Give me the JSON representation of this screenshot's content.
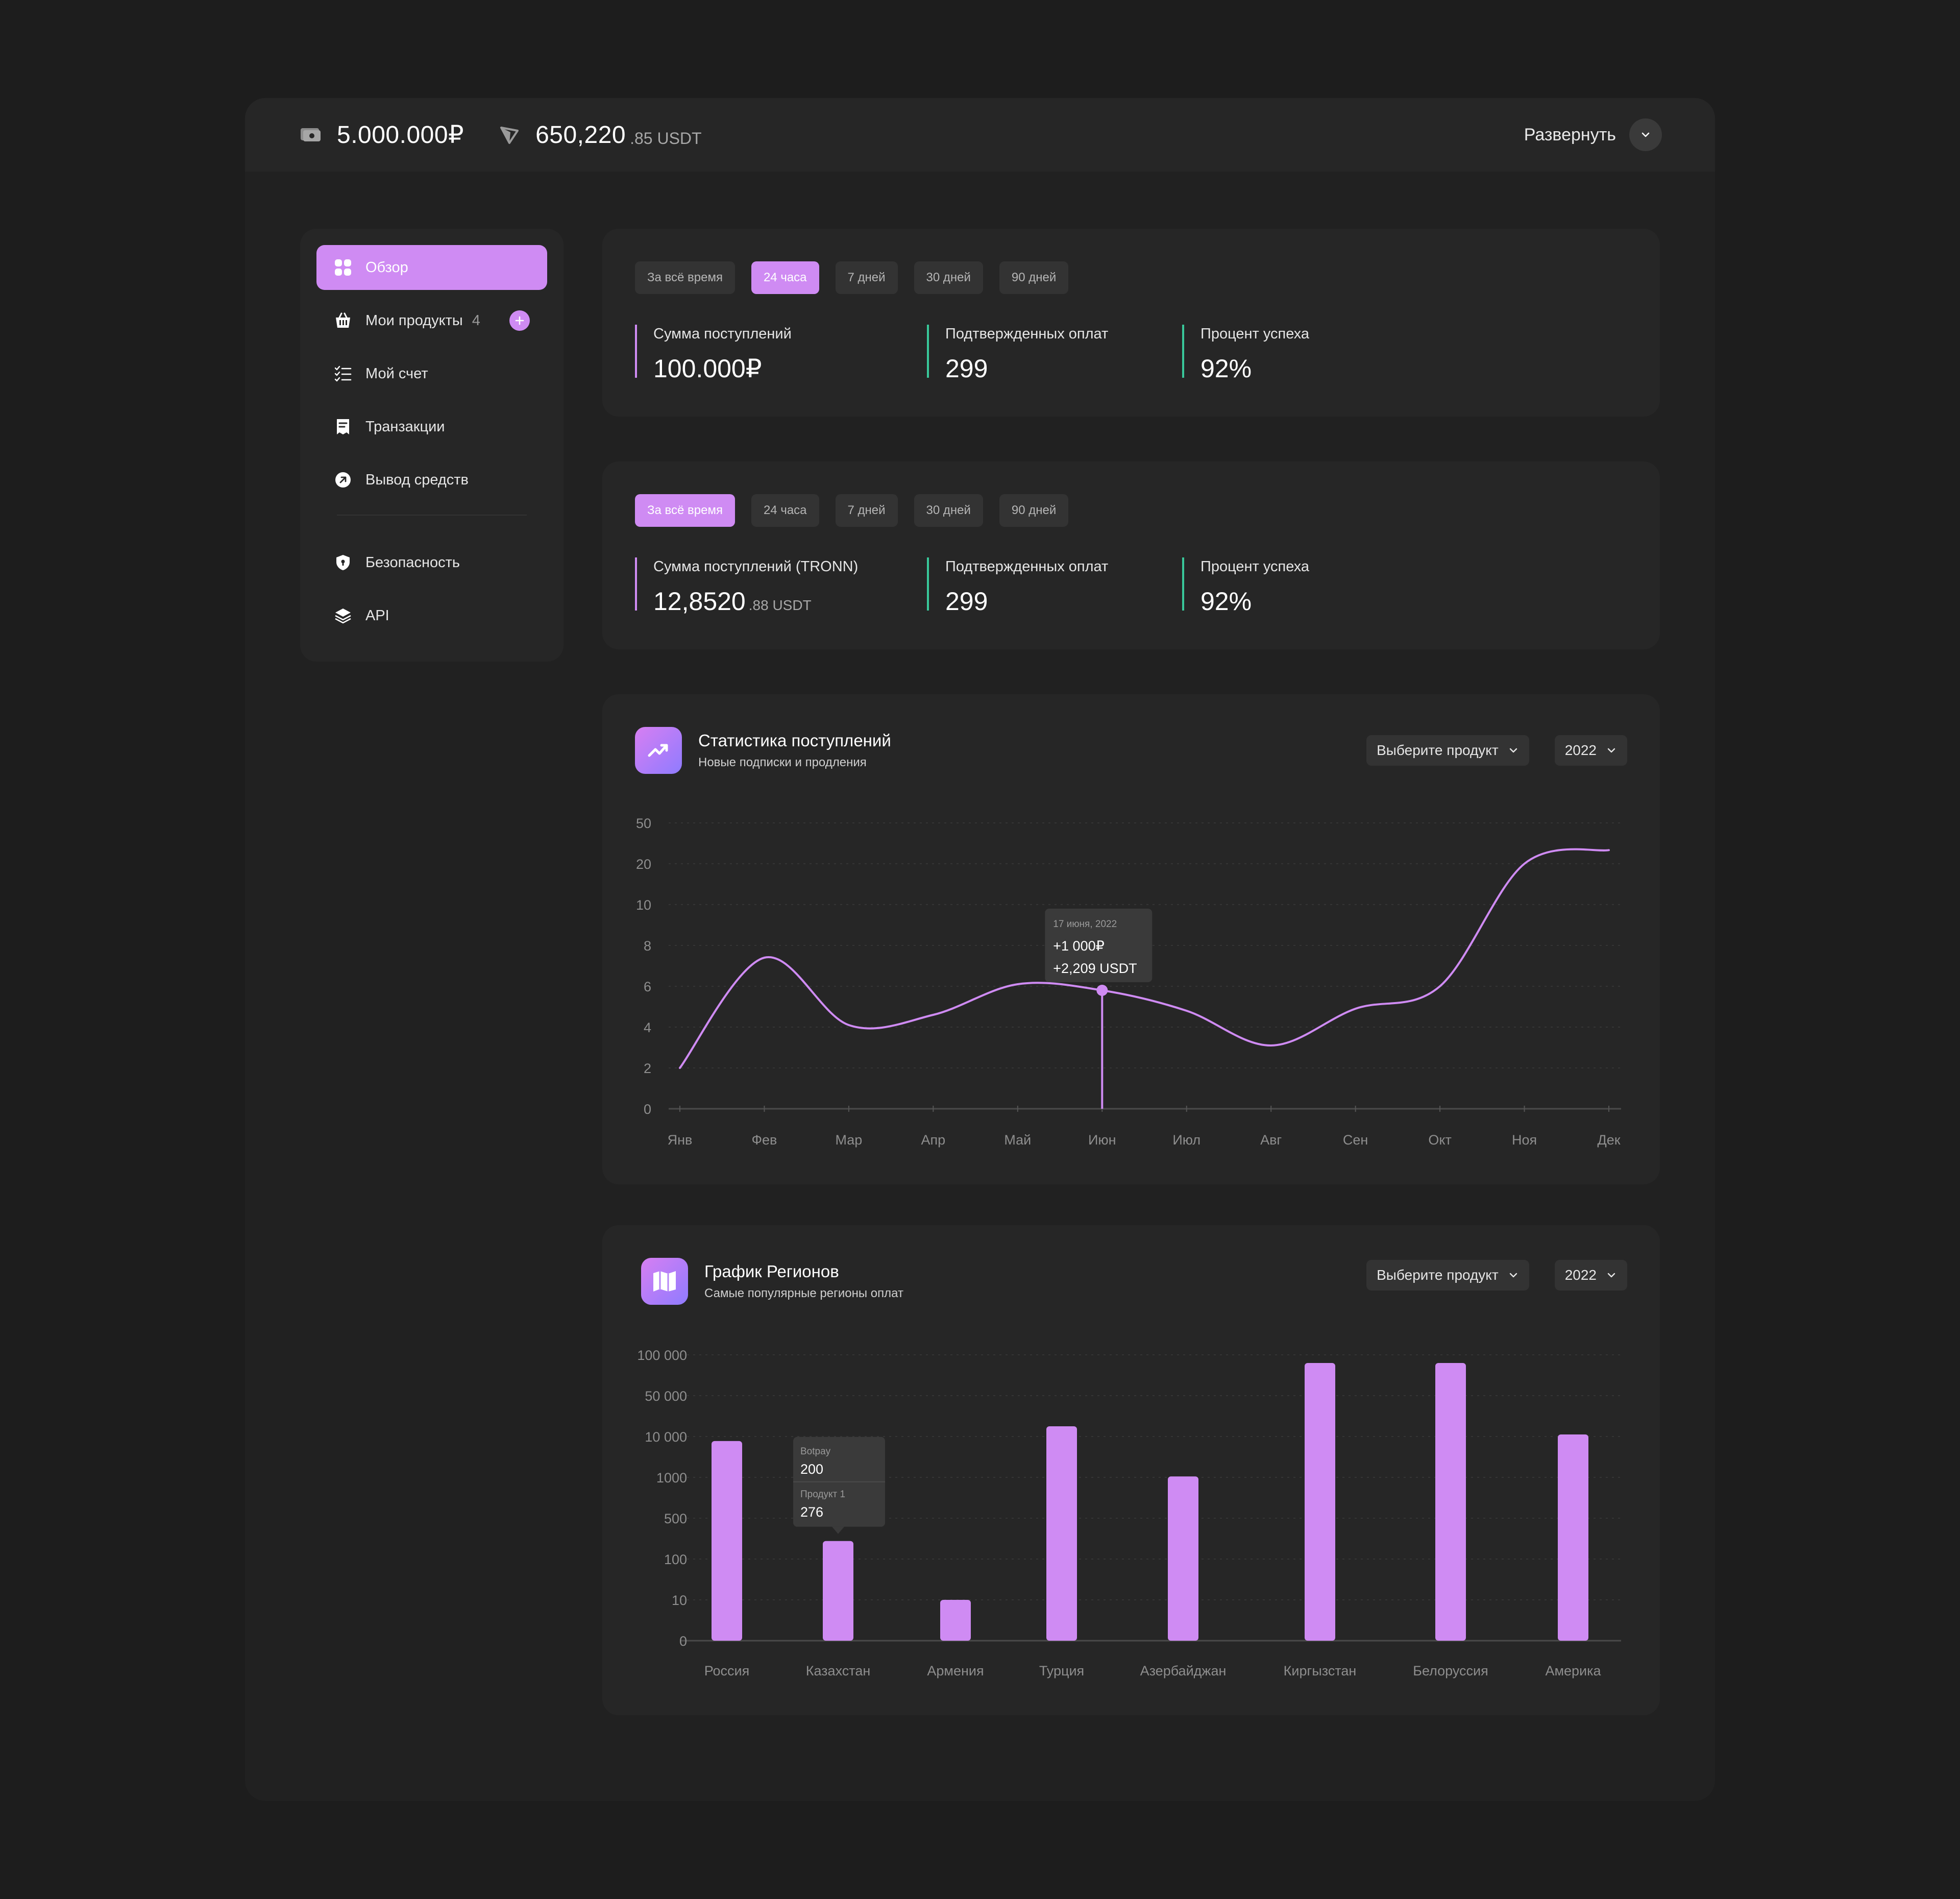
{
  "topbar": {
    "balance_rub": "5.000.000₽",
    "balance_usdt_main": "650,220",
    "balance_usdt_sub": ".85 USDT",
    "expand_label": "Развернуть",
    "icons": [
      "cash-icon",
      "tron-icon",
      "chevron-down-icon"
    ]
  },
  "sidebar": {
    "items": [
      {
        "label": "Обзор",
        "icon": "grid-icon",
        "active": true
      },
      {
        "label": "Мои продукты",
        "count": "4",
        "icon": "basket-icon"
      },
      {
        "label": "Мой счет",
        "icon": "checklist-icon"
      },
      {
        "label": "Транзакции",
        "icon": "receipt-icon"
      },
      {
        "label": "Вывод средств",
        "icon": "arrow-up-right-icon"
      },
      {
        "label": "Безопасность",
        "icon": "shield-icon"
      },
      {
        "label": "API",
        "icon": "layers-icon"
      }
    ]
  },
  "summary1": {
    "periods": [
      "За всё время",
      "24 часа",
      "7 дней",
      "30 дней",
      "90 дней"
    ],
    "active_period": 1,
    "stats": [
      {
        "label": "Сумма поступлений",
        "value": "100.000₽",
        "sub": ""
      },
      {
        "label": "Подтвержденных оплат",
        "value": "299",
        "sub": ""
      },
      {
        "label": "Процент успеха",
        "value": "92%",
        "sub": ""
      }
    ]
  },
  "summary2": {
    "periods": [
      "За всё время",
      "24 часа",
      "7 дней",
      "30 дней",
      "90 дней"
    ],
    "active_period": 0,
    "stats": [
      {
        "label": "Сумма поступлений (TRONN)",
        "value": "12,8520",
        "sub": ".88 USDT"
      },
      {
        "label": "Подтвержденных оплат",
        "value": "299",
        "sub": ""
      },
      {
        "label": "Процент успеха",
        "value": "92%",
        "sub": ""
      }
    ]
  },
  "income_chart": {
    "title": "Статистика поступлений",
    "subtitle": "Новые подписки и продления",
    "product_select": "Выберите продукт",
    "year_select": "2022",
    "tooltip": {
      "date": "17 июня, 2022",
      "line1": "+1 000₽",
      "line2": "+2,209 USDT"
    }
  },
  "regions_chart": {
    "title": "График Регионов",
    "subtitle": "Самые популярные регионы оплат",
    "product_select": "Выберите продукт",
    "year_select": "2022",
    "tooltip": {
      "label1": "Botpay",
      "value1": "200",
      "label2": "Продукт 1",
      "value2": "276"
    }
  },
  "chart_data": [
    {
      "type": "line",
      "title": "Статистика поступлений",
      "y_ticks": [
        "0",
        "2",
        "4",
        "6",
        "8",
        "10",
        "20",
        "50"
      ],
      "categories": [
        "Янв",
        "Фев",
        "Мар",
        "Апр",
        "Май",
        "Июн",
        "Июл",
        "Авг",
        "Сен",
        "Окт",
        "Ноя",
        "Дек"
      ],
      "values": [
        2,
        7.4,
        4.1,
        4.6,
        6.1,
        5.8,
        4.8,
        3.1,
        4.9,
        6,
        20,
        30
      ],
      "highlight_index": 5,
      "line_color": "#cf8bf3",
      "grid": true
    },
    {
      "type": "bar",
      "title": "График Регионов",
      "y_ticks": [
        "0",
        "10",
        "100",
        "500",
        "1000",
        "10 000",
        "50 000",
        "100 000"
      ],
      "categories": [
        "Россия",
        "Казахстан",
        "Армения",
        "Турция",
        "Азербайджан",
        "Киргызстан",
        "Белоруссия",
        "Америка"
      ],
      "values": [
        9000,
        276,
        10,
        20000,
        1200,
        90000,
        90000,
        12000
      ],
      "bar_color": "#cf8bf3",
      "grid": true
    }
  ]
}
